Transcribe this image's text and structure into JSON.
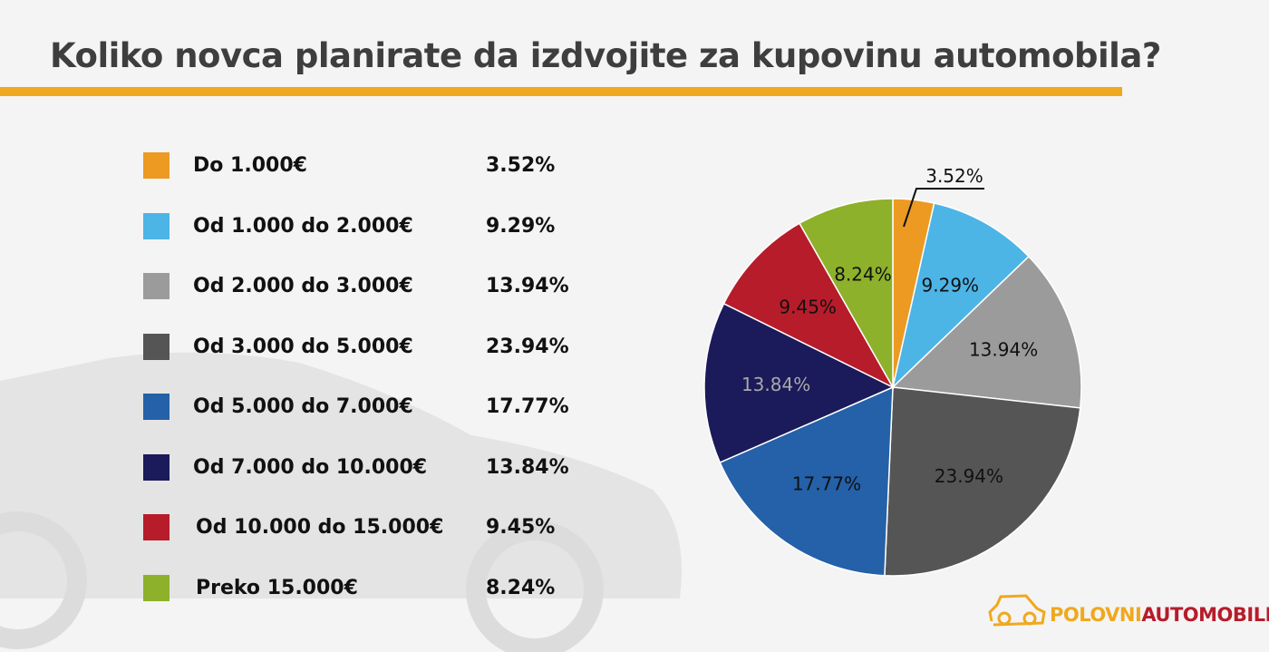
{
  "title": "Koliko novca planirate da izdvojite za kupovinu automobila?",
  "accent_color": "#f0a81e",
  "logo": {
    "part1": "POLOVNI",
    "part2": "AUTOMOBILI",
    "color1": "#f0a81e",
    "color2": "#b71c2a"
  },
  "chart_data": {
    "type": "pie",
    "title": "Koliko novca planirate da izdvojite za kupovinu automobila?",
    "legend_placement": "left",
    "start": "top, clockwise",
    "slices": [
      {
        "label": "Do 1.000€",
        "value": 3.52,
        "display": "3.52%",
        "color": "#ec9a22"
      },
      {
        "label": "Od 1.000 do 2.000€",
        "value": 9.29,
        "display": "9.29%",
        "color": "#4db4e6"
      },
      {
        "label": "Od 2.000 do 3.000€",
        "value": 13.94,
        "display": "13.94%",
        "color": "#9b9b9b"
      },
      {
        "label": "Od 3.000 do 5.000€",
        "value": 23.94,
        "display": "23.94%",
        "color": "#555555"
      },
      {
        "label": "Od 5.000 do 7.000€",
        "value": 17.77,
        "display": "17.77%",
        "color": "#2461a8"
      },
      {
        "label": "Od 7.000 do 10.000€",
        "value": 13.84,
        "display": "13.84%",
        "color": "#1b1a5a"
      },
      {
        "label": "Od 10.000 do 15.000€",
        "value": 9.45,
        "display": "9.45%",
        "color": "#b71c2a"
      },
      {
        "label": "Preko 15.000€",
        "value": 8.24,
        "display": "8.24%",
        "color": "#8db12a"
      }
    ]
  }
}
